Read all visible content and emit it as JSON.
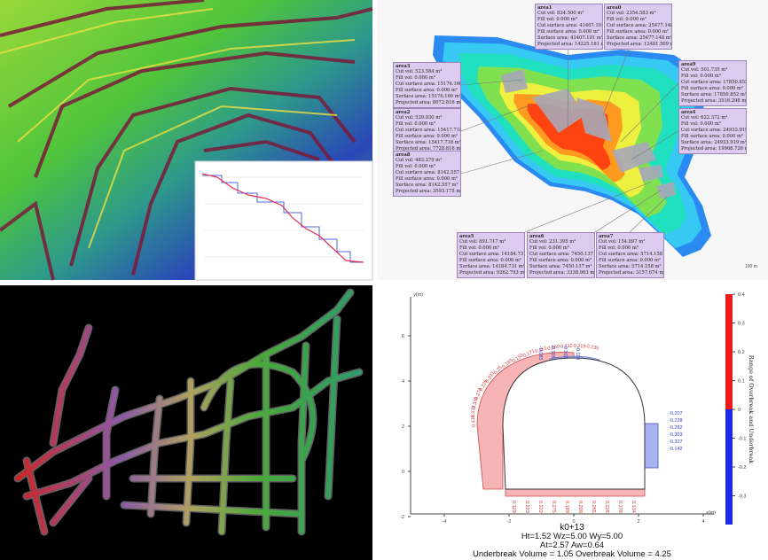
{
  "area_panel": {
    "areas": [
      {
        "name": "area1",
        "lines": [
          "Cut vol: 824.500 m³",
          "Fill vol: 0.000 m³",
          "Cut surface area: 41407.101 m²",
          "Fill surface area: 0.000 m²",
          "Surface area: 41407.101 m²",
          "Projected area: 14225.181 m²"
        ]
      },
      {
        "name": "area0",
        "lines": [
          "Cut vol: 2354.583 m³",
          "Fill vol: 0.000 m³",
          "Cut surface area: 25477.148 m²",
          "Fill surface area: 0.000 m²",
          "Surface area: 25477.148 m²",
          "Projected area: 12481.509 m²"
        ]
      },
      {
        "name": "area3",
        "lines": [
          "Cut vol: 523.584 m³",
          "Fill vol: 0.000 m³",
          "Cut surface area: 15176.160 m²",
          "Fill surface area: 0.000 m²",
          "Surface area: 15176.160 m²",
          "Projected area: 8072.816 m²"
        ]
      },
      {
        "name": "area2",
        "lines": [
          "Cut vol: 529.030 m³",
          "Fill vol: 0.000 m³",
          "Cut surface area: 15417.718 m²",
          "Fill surface area: 0.000 m²",
          "Surface area: 15417.718 m²",
          "Projected area: 7728.816 m²"
        ]
      },
      {
        "name": "area8",
        "lines": [
          "Cut vol: 483.279 m³",
          "Fill vol: 0.000 m³",
          "Cut surface area: 8142.557 m²",
          "Fill surface area: 0.000 m²",
          "Surface area: 8142.557 m²",
          "Projected area: 3593.175 m²"
        ]
      },
      {
        "name": "area9",
        "lines": [
          "Cut vol: 501.735 m³",
          "Fill vol: 0.000 m³",
          "Cut surface area: 17850.852 m²",
          "Fill surface area: 0.000 m²",
          "Surface area: 17850.852 m²",
          "Projected area: 3516.298 m²"
        ]
      },
      {
        "name": "area4",
        "lines": [
          "Cut vol: 622.372 m³",
          "Fill vol: 0.000 m³",
          "Cut surface area: 24933.919 m²",
          "Fill surface area: 0.000 m²",
          "Surface area: 24933.919 m²",
          "Projected area: 19968.726 m²"
        ]
      },
      {
        "name": "area5",
        "lines": [
          "Cut vol: 891.717 m³",
          "Fill vol: 0.000 m³",
          "Cut surface area: 14184.731 m²",
          "Fill surface area: 0.000 m²",
          "Surface area: 14184.731 m²",
          "Projected area: 9262.793 m²"
        ]
      },
      {
        "name": "area6",
        "lines": [
          "Cut vol: 231.395 m³",
          "Fill vol: 0.000 m³",
          "Cut surface area: 7450.137 m²",
          "Fill surface area: 0.000 m²",
          "Surface area: 7450.137 m²",
          "Projected area: 3338.963 m²"
        ]
      },
      {
        "name": "area7",
        "lines": [
          "Cut vol: 154.897 m³",
          "Fill vol: 0.000 m³",
          "Cut surface area: 5714.158 m²",
          "Fill surface area: 0.000 m²",
          "Surface area: 5714.158 m²",
          "Projected area: 3157.674 m²"
        ]
      }
    ]
  },
  "section_panel": {
    "y_label": "y(m)",
    "x_label": "x(m)",
    "xticks": [
      -4,
      -2,
      0,
      2,
      4
    ],
    "yticks": [
      6,
      4,
      2,
      0,
      -2
    ],
    "colorbar_ticks": [
      0.4,
      0.3,
      0.2,
      0.1,
      0,
      -0.1,
      -0.2,
      -0.3
    ],
    "colorbar_label": "Range of Overbreak and Underbreak",
    "overbreak_arc_labels": [
      0.416,
      0.373,
      0.336,
      0.274,
      0.226,
      0.203,
      0.25,
      0.183,
      0.153,
      0.171,
      0.151,
      0.069,
      0.212,
      0.219,
      0.235
    ],
    "underbreak_labels": [
      -0.085,
      -0.105,
      -0.103,
      -0.119,
      -0.207,
      -0.228,
      -0.282,
      -0.303,
      -0.327,
      -0.142
    ],
    "overbreak_floor_labels": [
      0.129,
      0.223,
      0.222,
      0.275,
      0.189,
      0.209,
      0.265,
      0.226,
      0.178,
      0.134
    ],
    "station": "k0+13",
    "params": [
      "Ht=1.52 Wz=5.00 Wy=5.00",
      "At=2.57 Aw=0.64",
      "Underbreak Volume = 1.05 Overbreak Volume = 4.25"
    ]
  }
}
